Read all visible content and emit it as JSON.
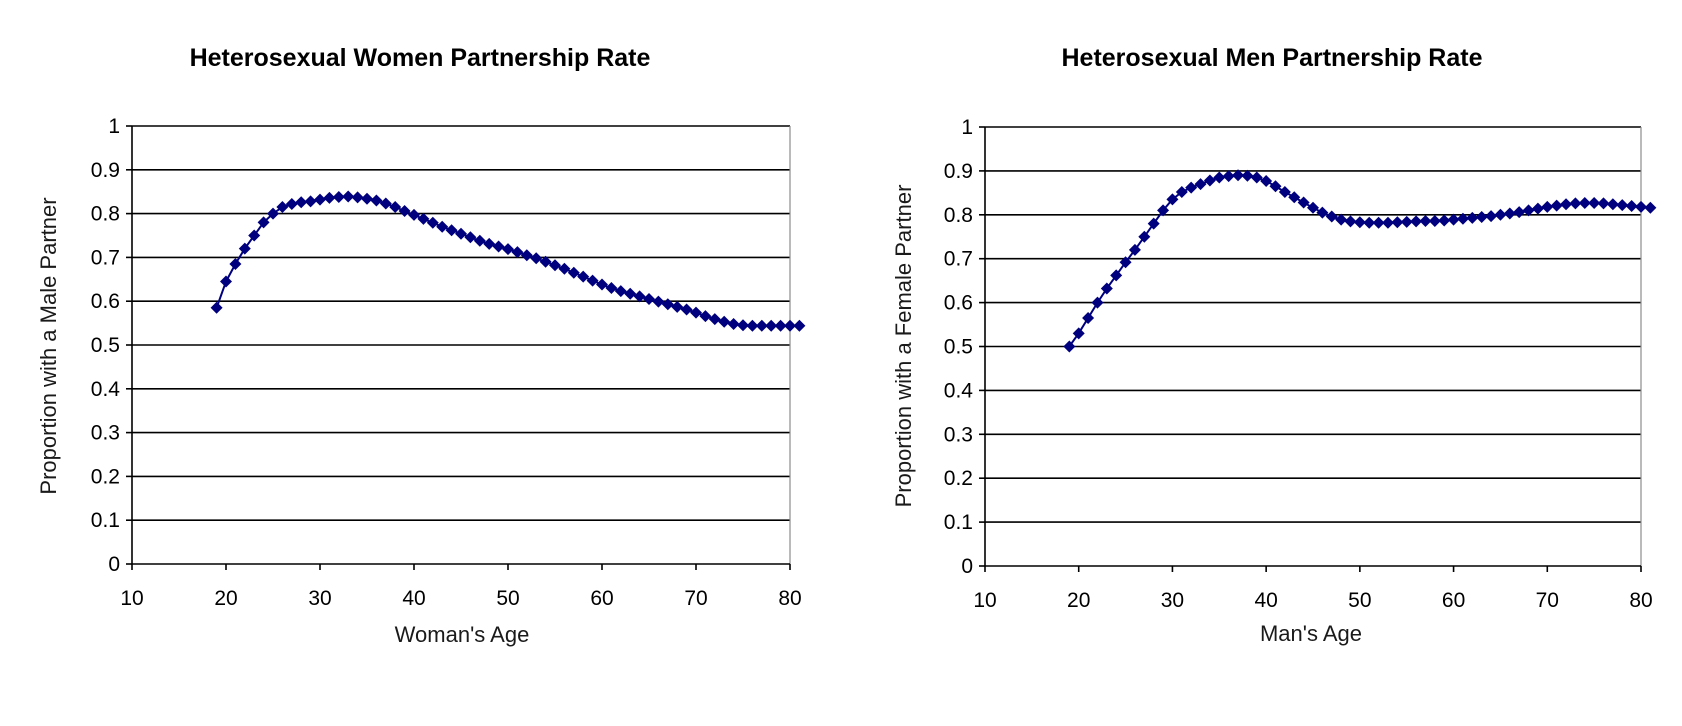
{
  "chart_data": [
    {
      "type": "line",
      "title": "Heterosexual Women Partnership Rate",
      "xlabel": "Woman's Age",
      "ylabel": "Proportion with a Male Partner",
      "xlim": [
        10,
        80
      ],
      "ylim": [
        0,
        1
      ],
      "xticks": [
        "10",
        "20",
        "30",
        "40",
        "50",
        "60",
        "70",
        "80"
      ],
      "yticks": [
        "0",
        "0.1",
        "0.2",
        "0.3",
        "0.4",
        "0.5",
        "0.6",
        "0.7",
        "0.8",
        "0.9",
        "1"
      ],
      "grid": true,
      "marker": "diamond",
      "color": "#00007f",
      "series": [
        {
          "x": [
            19,
            20,
            21,
            22,
            23,
            24,
            25,
            26,
            27,
            28,
            29,
            30,
            31,
            32,
            33,
            34,
            35,
            36,
            37,
            38,
            39,
            40,
            41,
            42,
            43,
            44,
            45,
            46,
            47,
            48,
            49,
            50,
            51,
            52,
            53,
            54,
            55,
            56,
            57,
            58,
            59,
            60,
            61,
            62,
            63,
            64,
            65,
            66,
            67,
            68,
            69,
            70,
            71,
            72,
            73,
            74,
            75,
            76,
            77,
            78,
            79,
            80,
            81
          ],
          "values": [
            0.585,
            0.645,
            0.685,
            0.72,
            0.75,
            0.78,
            0.8,
            0.815,
            0.822,
            0.826,
            0.828,
            0.832,
            0.836,
            0.838,
            0.839,
            0.837,
            0.834,
            0.83,
            0.823,
            0.815,
            0.806,
            0.797,
            0.788,
            0.779,
            0.77,
            0.762,
            0.754,
            0.746,
            0.738,
            0.731,
            0.725,
            0.719,
            0.712,
            0.705,
            0.698,
            0.69,
            0.682,
            0.674,
            0.665,
            0.656,
            0.647,
            0.638,
            0.63,
            0.623,
            0.617,
            0.611,
            0.605,
            0.599,
            0.593,
            0.587,
            0.581,
            0.574,
            0.566,
            0.559,
            0.553,
            0.548,
            0.545,
            0.544,
            0.544,
            0.544,
            0.544,
            0.544,
            0.544
          ]
        }
      ]
    },
    {
      "type": "line",
      "title": "Heterosexual Men Partnership Rate",
      "xlabel": "Man's Age",
      "ylabel": "Proportion with a Female Partner",
      "xlim": [
        10,
        80
      ],
      "ylim": [
        0,
        1
      ],
      "xticks": [
        "10",
        "20",
        "30",
        "40",
        "50",
        "60",
        "70",
        "80"
      ],
      "yticks": [
        "0",
        "0.1",
        "0.2",
        "0.3",
        "0.4",
        "0.5",
        "0.6",
        "0.7",
        "0.8",
        "0.9",
        "1"
      ],
      "grid": true,
      "marker": "diamond",
      "color": "#00007f",
      "series": [
        {
          "x": [
            19,
            20,
            21,
            22,
            23,
            24,
            25,
            26,
            27,
            28,
            29,
            30,
            31,
            32,
            33,
            34,
            35,
            36,
            37,
            38,
            39,
            40,
            41,
            42,
            43,
            44,
            45,
            46,
            47,
            48,
            49,
            50,
            51,
            52,
            53,
            54,
            55,
            56,
            57,
            58,
            59,
            60,
            61,
            62,
            63,
            64,
            65,
            66,
            67,
            68,
            69,
            70,
            71,
            72,
            73,
            74,
            75,
            76,
            77,
            78,
            79,
            80,
            81
          ],
          "values": [
            0.5,
            0.53,
            0.565,
            0.6,
            0.632,
            0.662,
            0.692,
            0.72,
            0.75,
            0.78,
            0.81,
            0.835,
            0.852,
            0.862,
            0.87,
            0.878,
            0.885,
            0.888,
            0.89,
            0.889,
            0.885,
            0.877,
            0.865,
            0.852,
            0.84,
            0.828,
            0.816,
            0.805,
            0.796,
            0.789,
            0.785,
            0.783,
            0.782,
            0.782,
            0.782,
            0.783,
            0.784,
            0.785,
            0.786,
            0.786,
            0.787,
            0.789,
            0.791,
            0.793,
            0.795,
            0.797,
            0.8,
            0.803,
            0.806,
            0.81,
            0.814,
            0.818,
            0.821,
            0.824,
            0.826,
            0.827,
            0.827,
            0.826,
            0.824,
            0.822,
            0.82,
            0.818,
            0.816
          ]
        }
      ]
    }
  ]
}
